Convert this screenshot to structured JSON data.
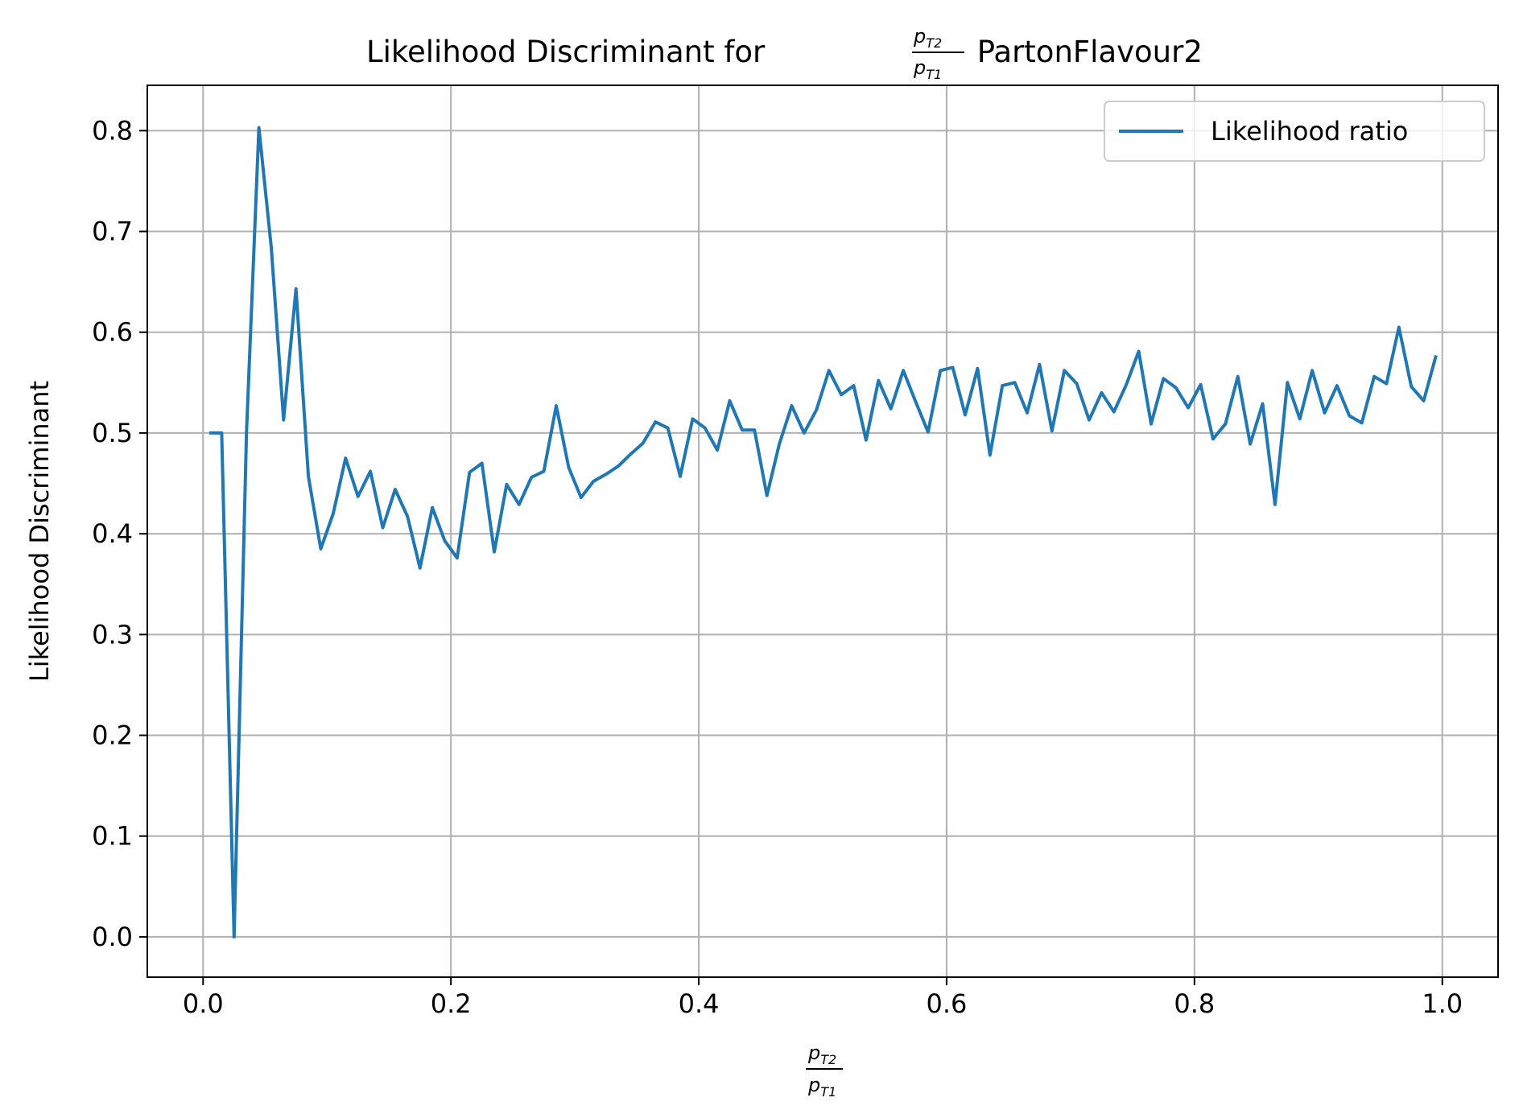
{
  "chart_data": {
    "type": "line",
    "title": {
      "prefix": "Likelihood Discriminant for ",
      "frac_num": "p",
      "frac_num_sub": "T2",
      "frac_den": "p",
      "frac_den_sub": "T1",
      "suffix": " PartonFlavour2"
    },
    "xlabel": {
      "frac_num": "p",
      "frac_num_sub": "T2",
      "frac_den": "p",
      "frac_den_sub": "T1"
    },
    "ylabel": "Likelihood Discriminant",
    "xlim": [
      -0.045,
      1.045
    ],
    "ylim": [
      -0.04,
      0.845
    ],
    "xticks": [
      0.0,
      0.2,
      0.4,
      0.6,
      0.8,
      1.0
    ],
    "xtick_labels": [
      "0.0",
      "0.2",
      "0.4",
      "0.6",
      "0.8",
      "1.0"
    ],
    "yticks": [
      0.0,
      0.1,
      0.2,
      0.3,
      0.4,
      0.5,
      0.6,
      0.7,
      0.8
    ],
    "ytick_labels": [
      "0.0",
      "0.1",
      "0.2",
      "0.3",
      "0.4",
      "0.5",
      "0.6",
      "0.7",
      "0.8"
    ],
    "grid": true,
    "legend": {
      "position": "upper right",
      "entries": [
        "Likelihood ratio"
      ]
    },
    "series": [
      {
        "name": "Likelihood ratio",
        "color": "#1f77b4",
        "x": [
          0.005,
          0.015,
          0.025,
          0.035,
          0.045,
          0.055,
          0.065,
          0.075,
          0.085,
          0.095,
          0.105,
          0.115,
          0.125,
          0.135,
          0.145,
          0.155,
          0.165,
          0.175,
          0.185,
          0.195,
          0.205,
          0.215,
          0.225,
          0.235,
          0.245,
          0.255,
          0.265,
          0.275,
          0.285,
          0.295,
          0.305,
          0.315,
          0.325,
          0.335,
          0.345,
          0.355,
          0.365,
          0.375,
          0.385,
          0.395,
          0.405,
          0.415,
          0.425,
          0.435,
          0.445,
          0.455,
          0.465,
          0.475,
          0.485,
          0.495,
          0.505,
          0.515,
          0.525,
          0.535,
          0.545,
          0.555,
          0.565,
          0.575,
          0.585,
          0.595,
          0.605,
          0.615,
          0.625,
          0.635,
          0.645,
          0.655,
          0.665,
          0.675,
          0.685,
          0.695,
          0.705,
          0.715,
          0.725,
          0.735,
          0.745,
          0.755,
          0.765,
          0.775,
          0.785,
          0.795,
          0.805,
          0.815,
          0.825,
          0.835,
          0.845,
          0.855,
          0.865,
          0.875,
          0.885,
          0.895,
          0.905,
          0.915,
          0.925,
          0.935,
          0.945,
          0.955,
          0.965,
          0.975,
          0.985,
          0.995
        ],
        "y": [
          0.5,
          0.5,
          0.0,
          0.5,
          0.803,
          0.685,
          0.513,
          0.643,
          0.457,
          0.385,
          0.42,
          0.475,
          0.437,
          0.462,
          0.406,
          0.444,
          0.417,
          0.366,
          0.426,
          0.393,
          0.376,
          0.461,
          0.47,
          0.382,
          0.449,
          0.429,
          0.456,
          0.462,
          0.527,
          0.466,
          0.436,
          0.452,
          0.459,
          0.467,
          0.479,
          0.49,
          0.511,
          0.505,
          0.457,
          0.514,
          0.505,
          0.483,
          0.532,
          0.503,
          0.503,
          0.438,
          0.489,
          0.527,
          0.5,
          0.523,
          0.562,
          0.538,
          0.547,
          0.493,
          0.552,
          0.524,
          0.562,
          0.531,
          0.501,
          0.562,
          0.565,
          0.518,
          0.564,
          0.478,
          0.547,
          0.55,
          0.52,
          0.568,
          0.502,
          0.562,
          0.549,
          0.513,
          0.54,
          0.521,
          0.548,
          0.581,
          0.509,
          0.554,
          0.545,
          0.525,
          0.548,
          0.494,
          0.509,
          0.556,
          0.489,
          0.529,
          0.429,
          0.55,
          0.514,
          0.562,
          0.52,
          0.547,
          0.517,
          0.51,
          0.556,
          0.549,
          0.605,
          0.546,
          0.532,
          0.577
        ]
      }
    ]
  }
}
